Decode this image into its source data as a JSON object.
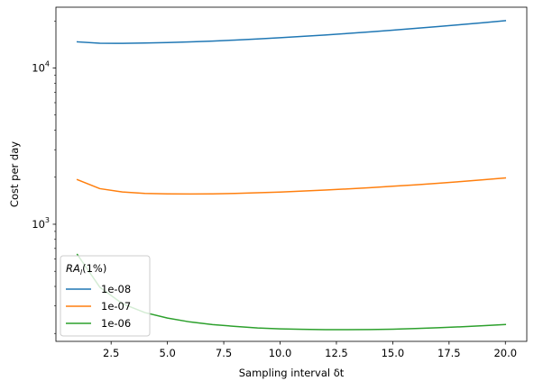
{
  "chart_data": {
    "type": "line",
    "xlabel": "Sampling interval δt",
    "ylabel": "Cost per day",
    "xlim": [
      0.05,
      20.95
    ],
    "ylim": [
      178,
      24500
    ],
    "y_scale": "log",
    "x_ticks": [
      2.5,
      5.0,
      7.5,
      10.0,
      12.5,
      15.0,
      17.5,
      20.0
    ],
    "x_tick_labels": [
      "2.5",
      "5.0",
      "7.5",
      "10.0",
      "12.5",
      "15.0",
      "17.5",
      "20.0"
    ],
    "y_major_ticks": [
      1000,
      10000
    ],
    "y_major_tick_labels": [
      {
        "base": "10",
        "exp": "3"
      },
      {
        "base": "10",
        "exp": "4"
      }
    ],
    "y_minor_ticks": [
      200,
      300,
      400,
      500,
      600,
      700,
      800,
      900,
      2000,
      3000,
      4000,
      5000,
      6000,
      7000,
      8000,
      9000,
      20000
    ],
    "grid": false,
    "legend": {
      "position": "lower-left",
      "title_main": "RA",
      "title_sub": "l",
      "title_suffix": "(1%)"
    },
    "x": [
      1,
      2,
      3,
      4,
      5,
      6,
      7,
      8,
      9,
      10,
      11,
      12,
      13,
      14,
      15,
      16,
      17,
      18,
      19,
      20
    ],
    "series": [
      {
        "name": "1e-08",
        "color": "#1f77b4",
        "values": [
          14700,
          14400,
          14380,
          14450,
          14550,
          14700,
          14880,
          15100,
          15350,
          15620,
          15930,
          16270,
          16640,
          17040,
          17470,
          17930,
          18420,
          18940,
          19500,
          20100
        ]
      },
      {
        "name": "1e-07",
        "color": "#ff7f0e",
        "values": [
          1930,
          1690,
          1610,
          1575,
          1565,
          1562,
          1565,
          1575,
          1590,
          1608,
          1630,
          1655,
          1683,
          1715,
          1750,
          1788,
          1830,
          1875,
          1925,
          1980
        ]
      },
      {
        "name": "1e-06",
        "color": "#2ca02c",
        "values": [
          640,
          395,
          310,
          272,
          251,
          237,
          228,
          222,
          217,
          214,
          212.5,
          211.5,
          211.5,
          212,
          213,
          215,
          217.5,
          220.5,
          224,
          228
        ]
      }
    ]
  }
}
